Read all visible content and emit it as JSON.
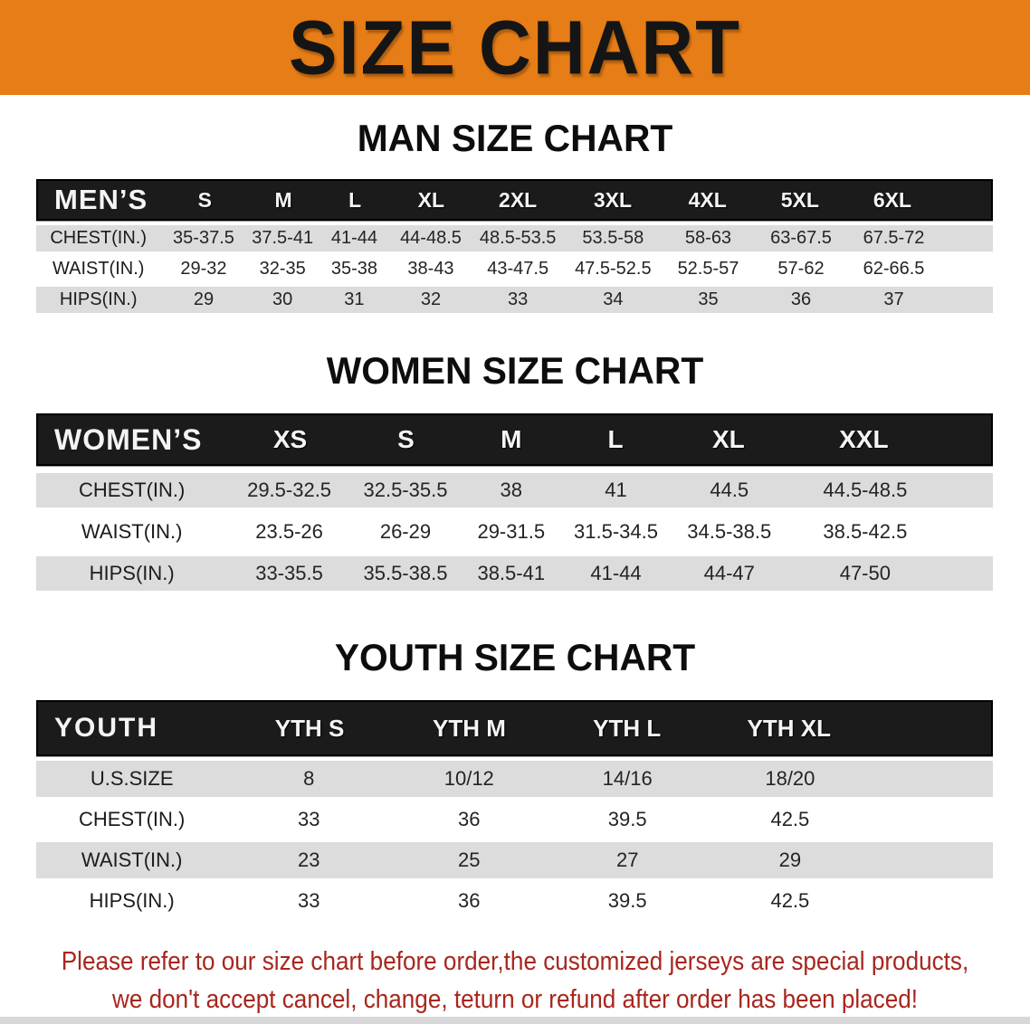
{
  "banner": {
    "title": "SIZE CHART"
  },
  "sections": [
    {
      "heading": "MAN SIZE CHART",
      "table": {
        "label": "MEN’S",
        "sizes": [
          "S",
          "M",
          "L",
          "XL",
          "2XL",
          "3XL",
          "4XL",
          "5XL",
          "6XL"
        ],
        "rows": [
          {
            "label": "CHEST(IN.)",
            "values": [
              "35-37.5",
              "37.5-41",
              "41-44",
              "44-48.5",
              "48.5-53.5",
              "53.5-58",
              "58-63",
              "63-67.5",
              "67.5-72"
            ]
          },
          {
            "label": "WAIST(IN.)",
            "values": [
              "29-32",
              "32-35",
              "35-38",
              "38-43",
              "43-47.5",
              "47.5-52.5",
              "52.5-57",
              "57-62",
              "62-66.5"
            ]
          },
          {
            "label": "HIPS(IN.)",
            "values": [
              "29",
              "30",
              "31",
              "32",
              "33",
              "34",
              "35",
              "36",
              "37"
            ]
          }
        ]
      }
    },
    {
      "heading": "WOMEN SIZE CHART",
      "table": {
        "label": "WOMEN’S",
        "sizes": [
          "XS",
          "S",
          "M",
          "L",
          "XL",
          "XXL"
        ],
        "rows": [
          {
            "label": "CHEST(IN.)",
            "values": [
              "29.5-32.5",
              "32.5-35.5",
              "38",
              "41",
              "44.5",
              "44.5-48.5"
            ]
          },
          {
            "label": "WAIST(IN.)",
            "values": [
              "23.5-26",
              "26-29",
              "29-31.5",
              "31.5-34.5",
              "34.5-38.5",
              "38.5-42.5"
            ]
          },
          {
            "label": "HIPS(IN.)",
            "values": [
              "33-35.5",
              "35.5-38.5",
              "38.5-41",
              "41-44",
              "44-47",
              "47-50"
            ]
          }
        ]
      }
    },
    {
      "heading": "YOUTH SIZE CHART",
      "table": {
        "label": "YOUTH",
        "sizes": [
          "YTH S",
          "YTH M",
          "YTH L",
          "YTH XL"
        ],
        "rows": [
          {
            "label": "U.S.SIZE",
            "values": [
              "8",
              "10/12",
              "14/16",
              "18/20"
            ]
          },
          {
            "label": "CHEST(IN.)",
            "values": [
              "33",
              "36",
              "39.5",
              "42.5"
            ]
          },
          {
            "label": "WAIST(IN.)",
            "values": [
              "23",
              "25",
              "27",
              "29"
            ]
          },
          {
            "label": "HIPS(IN.)",
            "values": [
              "33",
              "36",
              "39.5",
              "42.5"
            ]
          }
        ]
      }
    }
  ],
  "footer": {
    "line1": "Please refer to our size chart before order,the customized jerseys are special products,",
    "line2": "we don't accept cancel, change, teturn or refund after order has been placed!"
  },
  "colors": {
    "banner_orange": "#E67D17",
    "header_black": "#1B1B1B",
    "row_gray": "#DCDCDC",
    "disclaimer_red": "#A8261D"
  }
}
